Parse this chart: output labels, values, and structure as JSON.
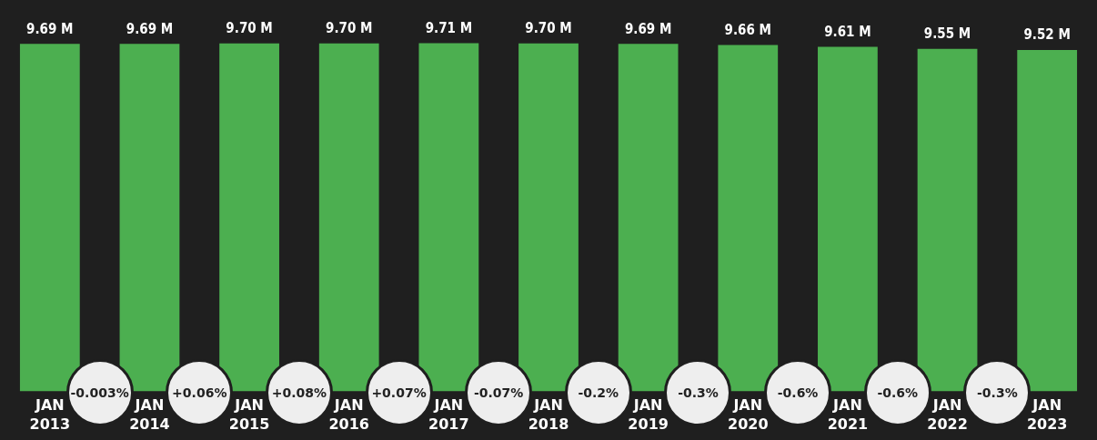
{
  "chart_data": {
    "type": "bar",
    "categories": [
      "JAN 2013",
      "JAN 2014",
      "JAN 2015",
      "JAN 2016",
      "JAN 2017",
      "JAN 2018",
      "JAN 2019",
      "JAN 2020",
      "JAN 2021",
      "JAN 2022",
      "JAN 2023"
    ],
    "values": [
      9.69,
      9.69,
      9.7,
      9.7,
      9.71,
      9.7,
      9.69,
      9.66,
      9.61,
      9.55,
      9.52
    ],
    "value_labels": [
      "9.69 M",
      "9.69 M",
      "9.70 M",
      "9.70 M",
      "9.71 M",
      "9.70 M",
      "9.69 M",
      "9.66 M",
      "9.61 M",
      "9.55 M",
      "9.52 M"
    ],
    "color": "#4caf50",
    "annotations": [
      "-0.003%",
      "+0.06%",
      "+0.08%",
      "+0.07%",
      "-0.07%",
      "-0.2%",
      "-0.3%",
      "-0.6%",
      "-0.6%",
      "-0.3%"
    ],
    "legend": false,
    "tick_labels": "x"
  }
}
